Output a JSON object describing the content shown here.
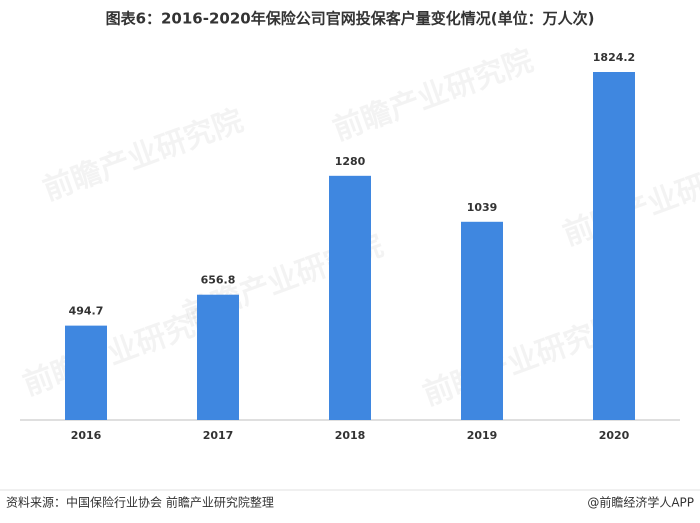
{
  "chart_data": {
    "type": "bar",
    "title": "图表6：2016-2020年保险公司官网投保客户量变化情况(单位：万人次)",
    "categories": [
      "2016",
      "2017",
      "2018",
      "2019",
      "2020"
    ],
    "values": [
      494.7,
      656.8,
      1280,
      1039,
      1824.2
    ],
    "color": "#3f87e0",
    "source": "资料来源：中国保险行业协会 前瞻产业研究院整理",
    "credit": "@前瞻经济学人APP",
    "watermark": "前瞻产业研究院"
  }
}
